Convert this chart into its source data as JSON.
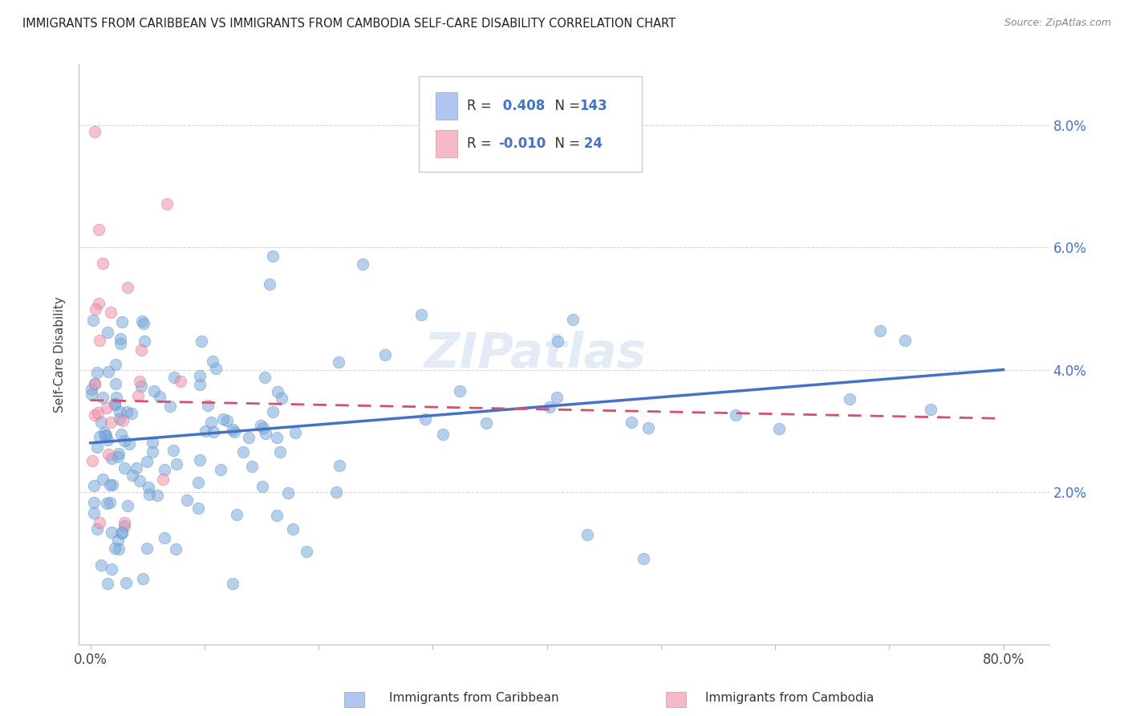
{
  "title": "IMMIGRANTS FROM CARIBBEAN VS IMMIGRANTS FROM CAMBODIA SELF-CARE DISABILITY CORRELATION CHART",
  "source": "Source: ZipAtlas.com",
  "ylabel": "Self-Care Disability",
  "watermark": "ZIPatlas",
  "caribbean_color": "#7aaadd",
  "cambodia_color": "#f090aa",
  "caribbean_edge_color": "#5588bb",
  "cambodia_edge_color": "#cc6688",
  "caribbean_line_color": "#4472c4",
  "cambodia_line_color": "#d45070",
  "right_tick_color": "#4472c4",
  "y_tick_vals": [
    0.02,
    0.04,
    0.06,
    0.08
  ],
  "y_tick_labels": [
    "2.0%",
    "4.0%",
    "6.0%",
    "8.0%"
  ],
  "x_tick_vals": [
    0.0,
    0.1,
    0.2,
    0.3,
    0.4,
    0.5,
    0.6,
    0.7,
    0.8
  ],
  "xlim": [
    -0.01,
    0.84
  ],
  "ylim": [
    -0.005,
    0.09
  ],
  "legend_blue_color": "#aec6f0",
  "legend_pink_color": "#f4b8c8",
  "car_R": 0.408,
  "cam_R": -0.01,
  "car_N": 143,
  "cam_N": 24,
  "car_line_y0": 0.028,
  "car_line_y1": 0.04,
  "cam_line_y0": 0.035,
  "cam_line_y1": 0.032,
  "grid_color": "#cccccc",
  "spine_color": "#bbbbbb"
}
